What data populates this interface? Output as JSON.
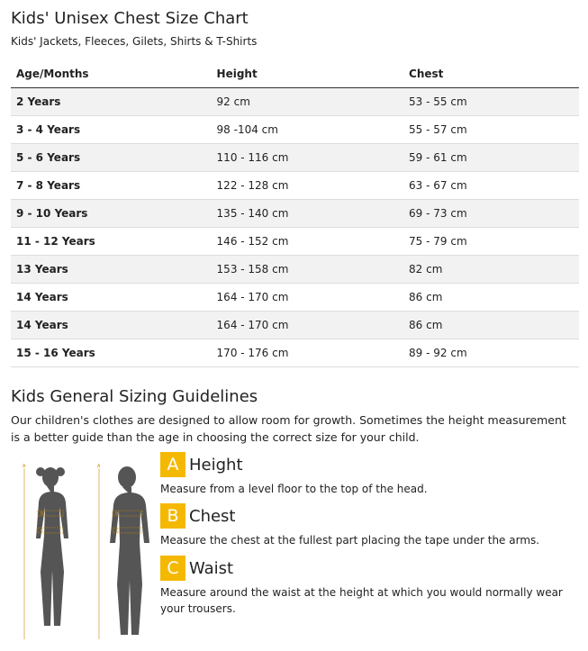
{
  "header": {
    "title": "Kids' Unisex Chest Size Chart",
    "subtitle": "Kids' Jackets, Fleeces, Gilets, Shirts & T-Shirts"
  },
  "table": {
    "columns": [
      "Age/Months",
      "Height",
      "Chest"
    ],
    "rows": [
      [
        "2 Years",
        "92 cm",
        "53 - 55 cm"
      ],
      [
        "3 - 4 Years",
        "98 -104 cm",
        "55 - 57 cm"
      ],
      [
        "5 - 6 Years",
        "110 - 116 cm",
        "59 - 61 cm"
      ],
      [
        "7 - 8 Years",
        "122 - 128 cm",
        "63 - 67 cm"
      ],
      [
        "9 - 10 Years",
        "135 - 140 cm",
        "69 - 73 cm"
      ],
      [
        "11 - 12 Years",
        "146 - 152 cm",
        "75 - 79 cm"
      ],
      [
        "13 Years",
        "153 - 158 cm",
        "82 cm"
      ],
      [
        "14 Years",
        "164 - 170 cm",
        "86 cm"
      ],
      [
        "14 Years",
        "164 - 170 cm",
        "86 cm"
      ],
      [
        "15 - 16 Years",
        "170 - 176 cm",
        "89 - 92 cm"
      ]
    ]
  },
  "guidelines": {
    "title": "Kids General Sizing Guidelines",
    "intro": "Our children's clothes are designed to allow room for growth. Sometimes the height measurement is a better guide than the age in choosing the correct size for your child.",
    "items": [
      {
        "letter": "A",
        "title": "Height",
        "text": "Measure from a level floor to the top of the head."
      },
      {
        "letter": "B",
        "title": "Chest",
        "text": "Measure the chest at the fullest part placing the tape under the arms."
      },
      {
        "letter": "C",
        "title": "Waist",
        "text": "Measure around the waist at the height at which you would normally wear your trousers."
      }
    ]
  }
}
